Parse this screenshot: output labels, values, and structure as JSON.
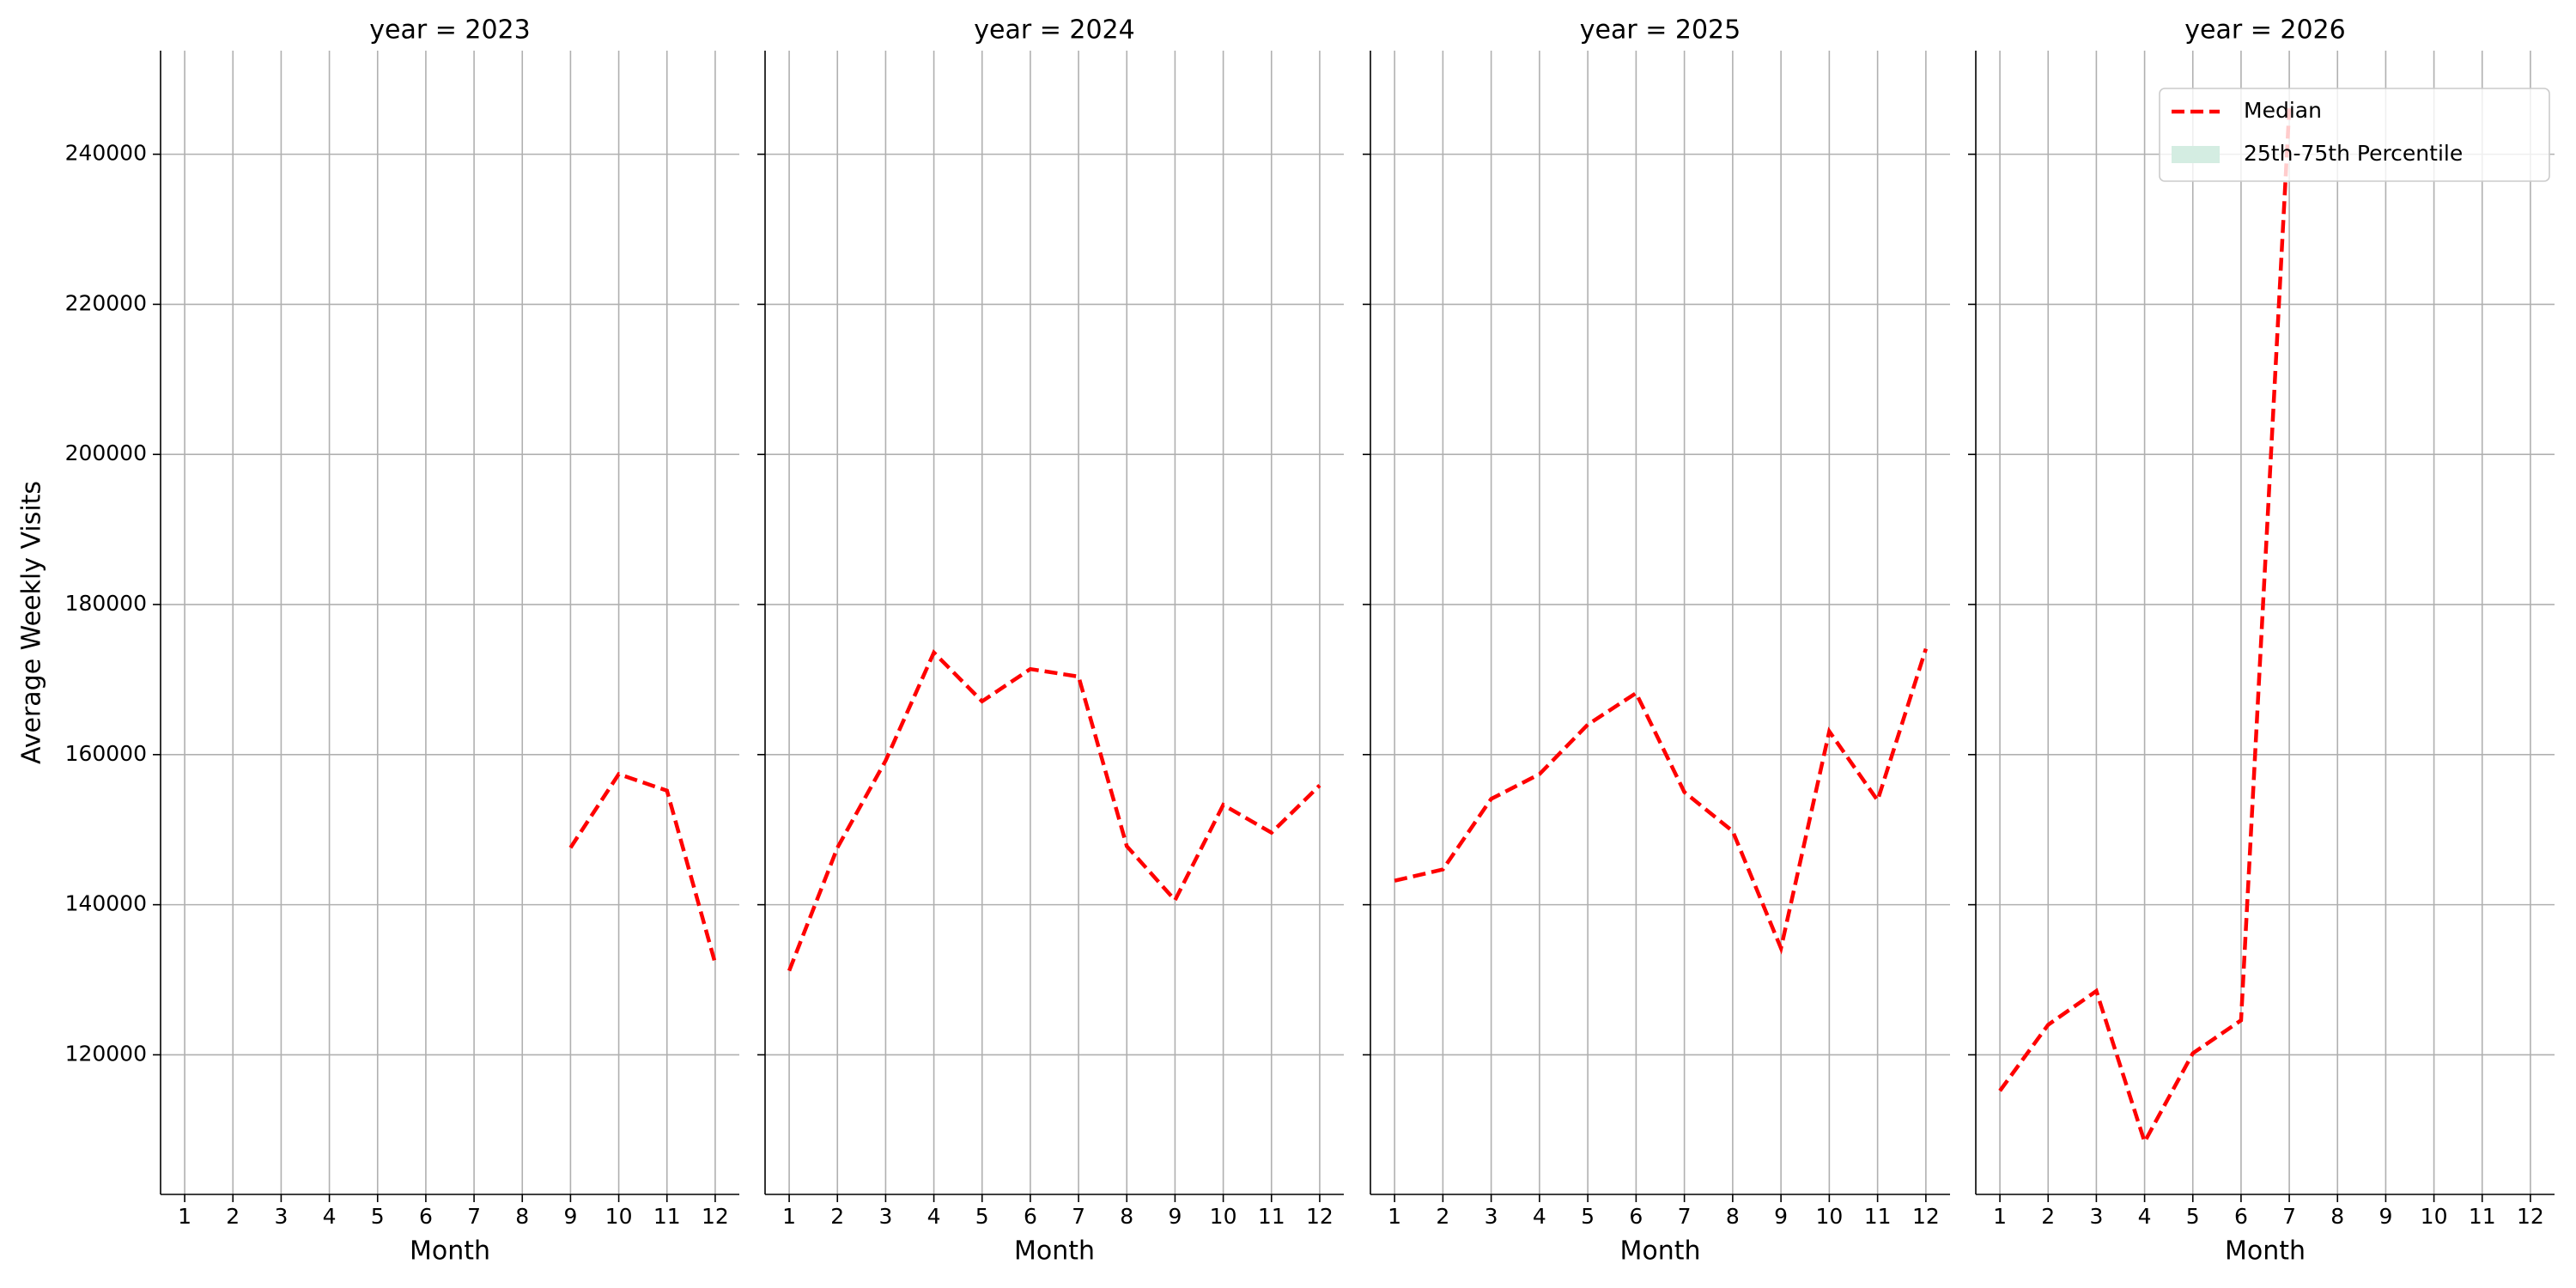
{
  "chart_data": [
    {
      "type": "line",
      "title": "year = 2023",
      "xlabel": "Month",
      "ylabel": "Average Weekly Visits",
      "x": [
        1,
        2,
        3,
        4,
        5,
        6,
        7,
        8,
        9,
        10,
        11,
        12
      ],
      "xticks": [
        1,
        2,
        3,
        4,
        5,
        6,
        7,
        8,
        9,
        10,
        11,
        12
      ],
      "xlim": [
        0.5,
        12.5
      ],
      "ylim": [
        101400,
        253800
      ],
      "yticks": [
        120000,
        140000,
        160000,
        180000,
        200000,
        220000,
        240000
      ],
      "grid": true,
      "series": [
        {
          "name": "Median",
          "color": "#ff0000",
          "values": [
            null,
            null,
            null,
            null,
            null,
            null,
            null,
            null,
            147600,
            157400,
            155200,
            132200
          ]
        }
      ]
    },
    {
      "type": "line",
      "title": "year = 2024",
      "xlabel": "Month",
      "x": [
        1,
        2,
        3,
        4,
        5,
        6,
        7,
        8,
        9,
        10,
        11,
        12
      ],
      "xticks": [
        1,
        2,
        3,
        4,
        5,
        6,
        7,
        8,
        9,
        10,
        11,
        12
      ],
      "xlim": [
        0.5,
        12.5
      ],
      "grid": true,
      "series": [
        {
          "name": "Median",
          "color": "#ff0000",
          "values": [
            131200,
            147600,
            159200,
            173600,
            167100,
            171400,
            170400,
            147800,
            140600,
            153300,
            149600,
            155900
          ]
        }
      ]
    },
    {
      "type": "line",
      "title": "year = 2025",
      "xlabel": "Month",
      "x": [
        1,
        2,
        3,
        4,
        5,
        6,
        7,
        8,
        9,
        10,
        11,
        12
      ],
      "xticks": [
        1,
        2,
        3,
        4,
        5,
        6,
        7,
        8,
        9,
        10,
        11,
        12
      ],
      "xlim": [
        0.5,
        12.5
      ],
      "grid": true,
      "series": [
        {
          "name": "Median",
          "color": "#ff0000",
          "values": [
            143200,
            144700,
            154100,
            157400,
            164000,
            168200,
            155000,
            149800,
            134200,
            163100,
            153900,
            174100
          ]
        }
      ]
    },
    {
      "type": "line",
      "title": "year = 2026",
      "xlabel": "Month",
      "x": [
        1,
        2,
        3,
        4,
        5,
        6,
        7,
        8,
        9,
        10,
        11,
        12
      ],
      "xticks": [
        1,
        2,
        3,
        4,
        5,
        6,
        7,
        8,
        9,
        10,
        11,
        12
      ],
      "xlim": [
        0.5,
        12.5
      ],
      "grid": true,
      "series": [
        {
          "name": "Median",
          "color": "#ff0000",
          "values": [
            115200,
            124000,
            128500,
            108400,
            120200,
            124600,
            246100,
            null,
            null,
            null,
            null,
            null
          ]
        }
      ],
      "band": {
        "name": "25th-75th Percentile",
        "color": "#d4ede2"
      },
      "legend": "upper right"
    }
  ]
}
